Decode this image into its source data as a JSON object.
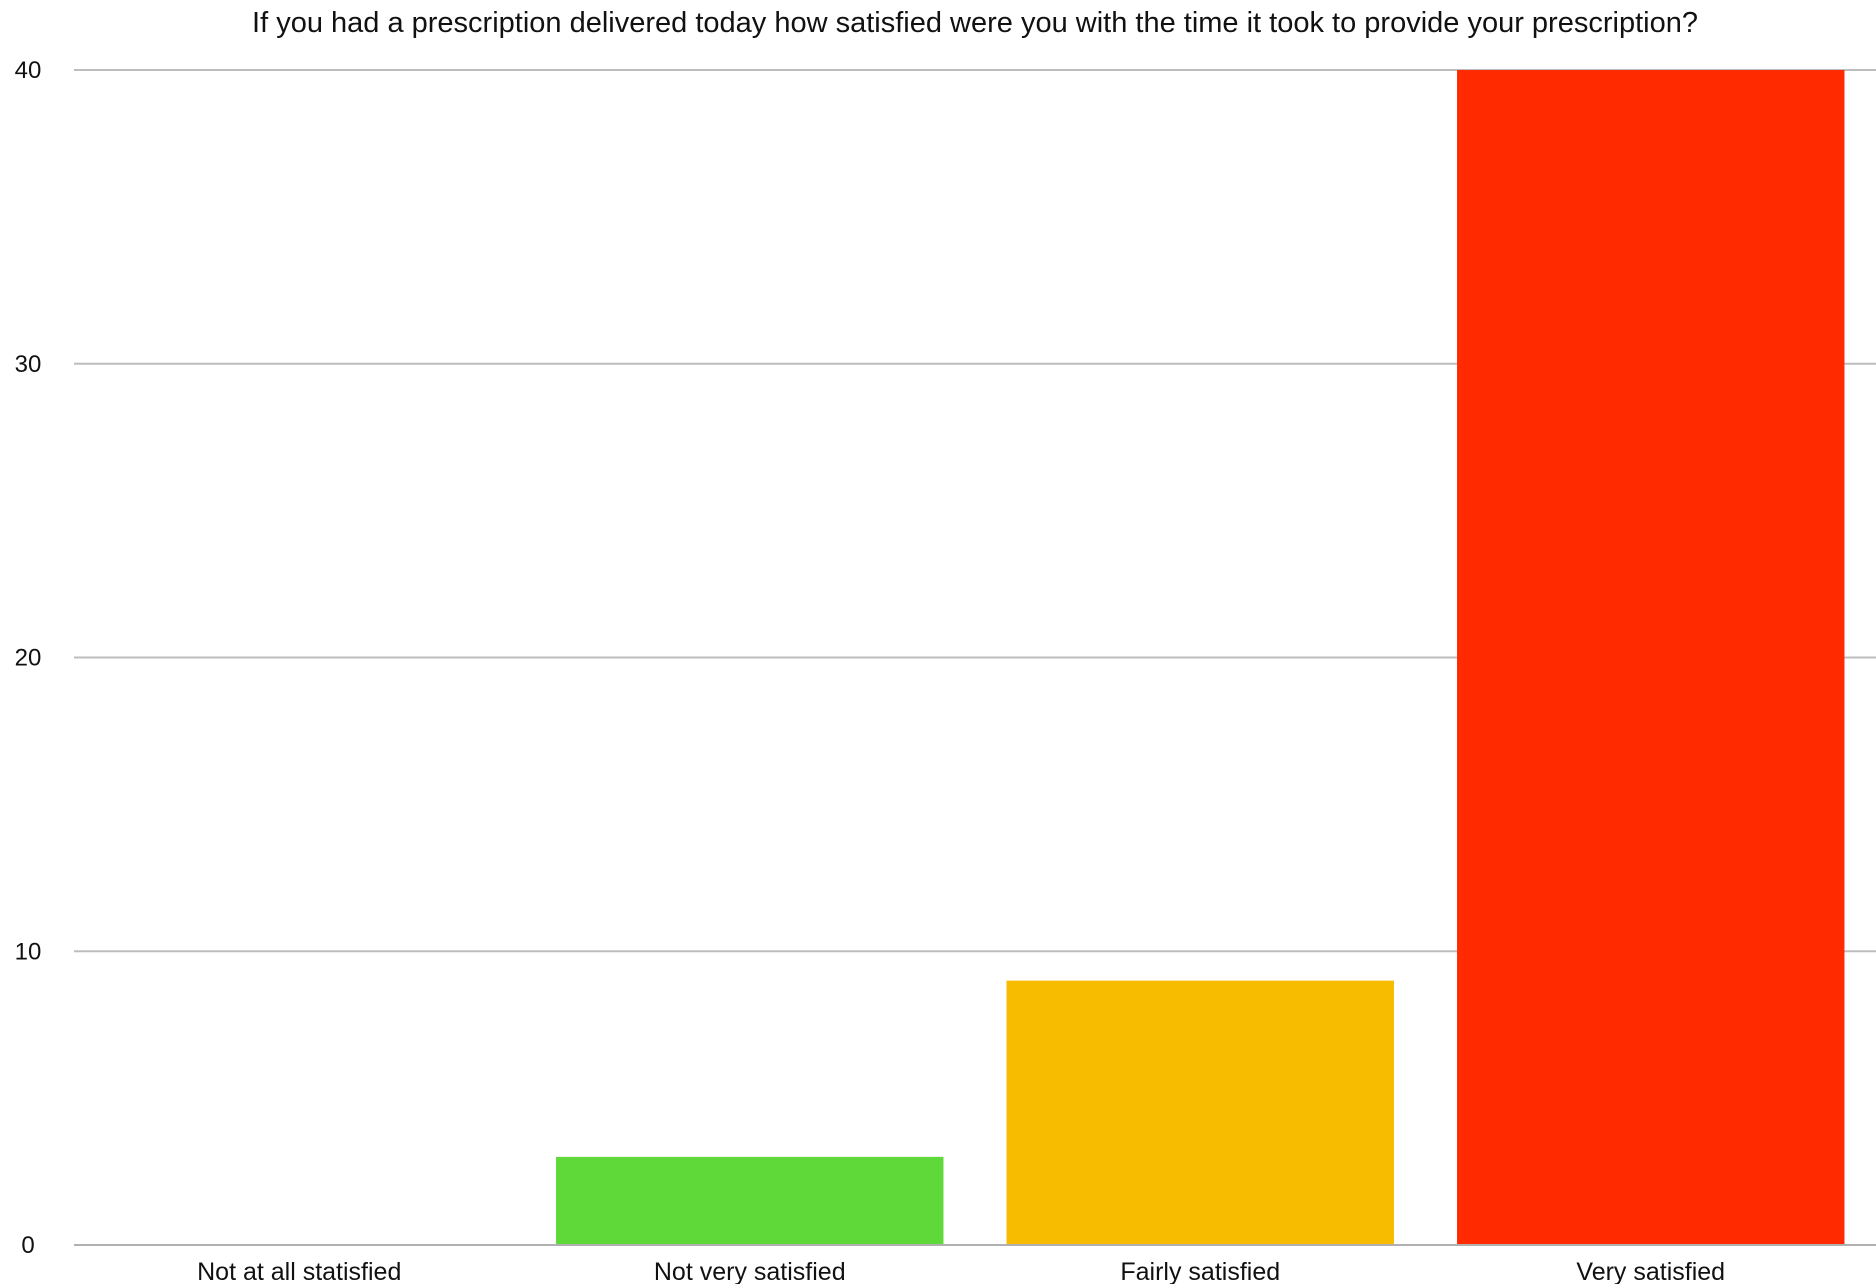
{
  "chart_data": {
    "type": "bar",
    "title": "If you had a prescription delivered today how satisfied were you with the time it took to provide your prescription?",
    "xlabel": "",
    "ylabel": "",
    "categories": [
      "Not at all statisfied",
      "Not very satisfied",
      "Fairly satisfied",
      "Very satisfied"
    ],
    "values": [
      0,
      3,
      9,
      40
    ],
    "colors": [
      "#5fd93a",
      "#5fd93a",
      "#f7bb00",
      "#ff2a00"
    ],
    "ylim": [
      0,
      40
    ],
    "yticks": [
      0,
      10,
      20,
      30,
      40
    ],
    "grid": true,
    "legend": "none"
  }
}
